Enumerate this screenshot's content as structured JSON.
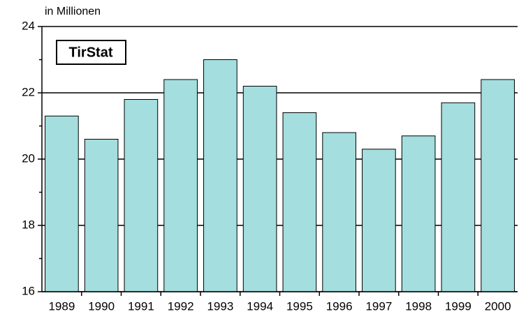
{
  "chart_data": {
    "type": "bar",
    "title": "TirStat",
    "y_unit": "in Millionen",
    "categories": [
      "1989",
      "1990",
      "1991",
      "1992",
      "1993",
      "1994",
      "1995",
      "1996",
      "1997",
      "1998",
      "1999",
      "2000"
    ],
    "values": [
      21.3,
      20.6,
      21.8,
      22.4,
      23.0,
      22.2,
      21.4,
      20.8,
      20.3,
      20.7,
      21.7,
      22.4
    ],
    "color": "#a4dede",
    "ylim": [
      16,
      24
    ],
    "yticks": [
      16,
      18,
      20,
      22,
      24
    ],
    "grid": true
  }
}
